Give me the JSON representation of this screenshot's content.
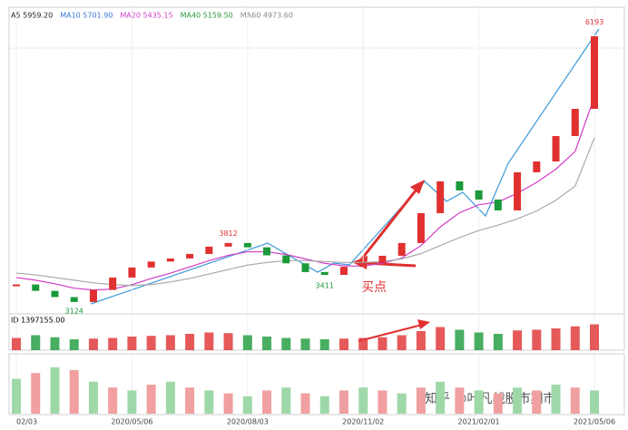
{
  "chart_data": {
    "type": "candle-line",
    "indicators": [
      {
        "label": "A5 5959.20",
        "color": "#222222"
      },
      {
        "label": "MA10 5701.90",
        "color": "#3a78d8"
      },
      {
        "label": "MA20 5435.15",
        "color": "#d23cc8"
      },
      {
        "label": "MA40 5159.50",
        "color": "#2a9a3a"
      },
      {
        "label": "MA60 4973.60",
        "color": "#888888"
      }
    ],
    "categories": [
      "02/03",
      null,
      null,
      null,
      null,
      null,
      "2020/05/06",
      null,
      null,
      null,
      null,
      null,
      "2020/08/03",
      null,
      null,
      null,
      null,
      null,
      "2020/11/02",
      null,
      null,
      null,
      null,
      null,
      "2021/02/01",
      null,
      null,
      null,
      null,
      null,
      "2021/05/06"
    ],
    "close": [
      3322,
      3250,
      3180,
      3125,
      3260,
      3400,
      3513,
      3580,
      3615,
      3666,
      3748,
      3789,
      3740,
      3650,
      3560,
      3462,
      3430,
      3520,
      3564,
      3645,
      3789,
      4125,
      4483,
      4381,
      4278,
      4156,
      4585,
      4707,
      4993,
      5299,
      6116
    ],
    "up_color": "#e03030",
    "down_color": "#1a9a3a",
    "series": [
      {
        "color": "#d23cc8",
        "values": [
          3400,
          3370,
          3330,
          3280,
          3260,
          3270,
          3320,
          3390,
          3450,
          3520,
          3590,
          3650,
          3690,
          3690,
          3660,
          3610,
          3560,
          3530,
          3530,
          3560,
          3620,
          3760,
          3970,
          4130,
          4220,
          4250,
          4350,
          4470,
          4620,
          4820,
          5435
        ]
      },
      {
        "color": "#aaaaaa",
        "values": [
          3450,
          3430,
          3400,
          3370,
          3340,
          3320,
          3310,
          3320,
          3350,
          3390,
          3440,
          3490,
          3540,
          3570,
          3590,
          3590,
          3580,
          3570,
          3570,
          3580,
          3610,
          3670,
          3760,
          3850,
          3930,
          3990,
          4060,
          4150,
          4270,
          4430,
          4974
        ]
      }
    ],
    "extrema": [
      null,
      null,
      null,
      3124,
      null,
      null,
      null,
      null,
      null,
      null,
      null,
      3812,
      null,
      null,
      null,
      null,
      3411,
      null,
      null,
      null,
      null,
      null,
      null,
      null,
      null,
      null,
      null,
      null,
      null,
      null,
      6193
    ],
    "ylim": [
      2950,
      6300
    ],
    "annotation": "买点",
    "volume_label": "ID 1397155.00",
    "volume": [
      900000,
      1100000,
      950000,
      800000,
      850000,
      900000,
      1000000,
      1050000,
      1100000,
      1200000,
      1300000,
      1250000,
      1100000,
      1000000,
      900000,
      850000,
      800000,
      850000,
      900000,
      950000,
      1100000,
      1400000,
      1700000,
      1500000,
      1300000,
      1200000,
      1450000,
      1500000,
      1600000,
      1750000,
      1900000
    ],
    "volume_lim": [
      0,
      2000000
    ],
    "oscillator": [
      60,
      70,
      80,
      75,
      55,
      45,
      40,
      50,
      55,
      45,
      40,
      35,
      30,
      40,
      45,
      35,
      30,
      40,
      45,
      40,
      35,
      45,
      55,
      45,
      40,
      35,
      45,
      40,
      50,
      45,
      40
    ],
    "oscillator_lim": [
      0,
      100
    ],
    "watermark": "知乎 @叶凡战股市期市"
  }
}
